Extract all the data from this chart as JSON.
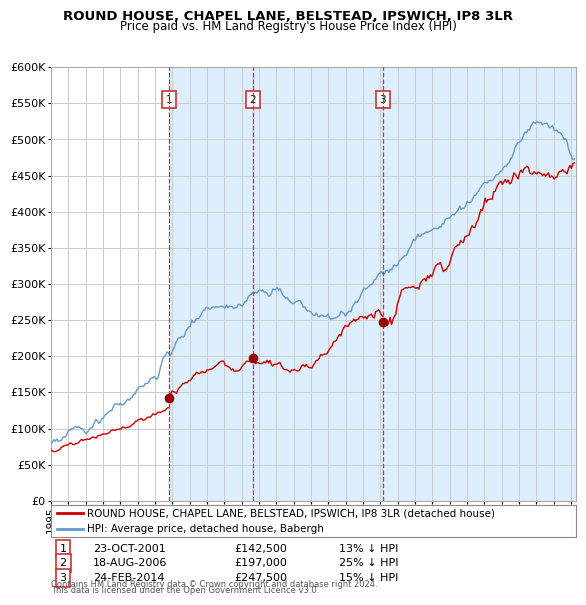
{
  "title": "ROUND HOUSE, CHAPEL LANE, BELSTEAD, IPSWICH, IP8 3LR",
  "subtitle": "Price paid vs. HM Land Registry's House Price Index (HPI)",
  "ylim": [
    0,
    600000
  ],
  "yticks": [
    0,
    50000,
    100000,
    150000,
    200000,
    250000,
    300000,
    350000,
    400000,
    450000,
    500000,
    550000,
    600000
  ],
  "ytick_labels": [
    "£0",
    "£50K",
    "£100K",
    "£150K",
    "£200K",
    "£250K",
    "£300K",
    "£350K",
    "£400K",
    "£450K",
    "£500K",
    "£550K",
    "£600K"
  ],
  "xlim_start": 1995.0,
  "xlim_end": 2025.3,
  "transactions": [
    {
      "num": 1,
      "date_num": 2001.81,
      "price": 142500,
      "label": "23-OCT-2001",
      "price_str": "£142,500",
      "pct": "13% ↓ HPI"
    },
    {
      "num": 2,
      "date_num": 2006.63,
      "price": 197000,
      "label": "18-AUG-2006",
      "price_str": "£197,000",
      "pct": "25% ↓ HPI"
    },
    {
      "num": 3,
      "date_num": 2014.15,
      "price": 247500,
      "label": "24-FEB-2014",
      "price_str": "£247,500",
      "pct": "15% ↓ HPI"
    }
  ],
  "red_line_color": "#cc0000",
  "blue_line_color": "#6699cc",
  "marker_color": "#990000",
  "dashed_line_color": "#cc3333",
  "shade_color": "#ddeeff",
  "legend_label_red": "ROUND HOUSE, CHAPEL LANE, BELSTEAD, IPSWICH, IP8 3LR (detached house)",
  "legend_label_blue": "HPI: Average price, detached house, Babergh",
  "footer1": "Contains HM Land Registry data © Crown copyright and database right 2024.",
  "footer2": "This data is licensed under the Open Government Licence v3.0.",
  "background_color": "#ffffff",
  "grid_color": "#cccccc"
}
